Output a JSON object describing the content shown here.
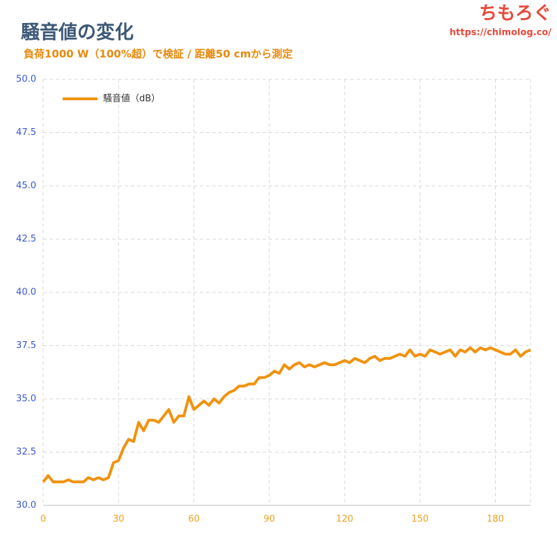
{
  "chart_data": {
    "type": "line",
    "title": "騒音値の変化",
    "subtitle": "負荷1000 W（100%超）で検証 / 距離50 cmから測定",
    "brand": "ちもろぐ",
    "brand_url": "https://chimolog.co/",
    "x": [
      0,
      2,
      4,
      6,
      8,
      10,
      12,
      14,
      16,
      18,
      20,
      22,
      24,
      26,
      28,
      30,
      32,
      34,
      36,
      38,
      40,
      42,
      44,
      46,
      48,
      50,
      52,
      54,
      56,
      58,
      60,
      62,
      64,
      66,
      68,
      70,
      72,
      74,
      76,
      78,
      80,
      82,
      84,
      86,
      88,
      90,
      92,
      94,
      96,
      98,
      100,
      102,
      104,
      106,
      108,
      110,
      112,
      114,
      116,
      118,
      120,
      122,
      124,
      126,
      128,
      130,
      132,
      134,
      136,
      138,
      140,
      142,
      144,
      146,
      148,
      150,
      152,
      154,
      156,
      158,
      160,
      162,
      164,
      166,
      168,
      170,
      172,
      174,
      176,
      178,
      180,
      182,
      184,
      186,
      188,
      190,
      192,
      194
    ],
    "series": [
      {
        "name": "騒音値（dB）",
        "color": "#f0920f",
        "values": [
          31.1,
          31.4,
          31.1,
          31.1,
          31.1,
          31.2,
          31.1,
          31.1,
          31.1,
          31.3,
          31.2,
          31.3,
          31.2,
          31.3,
          32.0,
          32.1,
          32.7,
          33.1,
          33.0,
          33.9,
          33.5,
          34.0,
          34.0,
          33.9,
          34.2,
          34.5,
          33.9,
          34.2,
          34.2,
          35.1,
          34.5,
          34.7,
          34.9,
          34.7,
          35.0,
          34.8,
          35.1,
          35.3,
          35.4,
          35.6,
          35.6,
          35.7,
          35.7,
          36.0,
          36.0,
          36.1,
          36.3,
          36.2,
          36.6,
          36.4,
          36.6,
          36.7,
          36.5,
          36.6,
          36.5,
          36.6,
          36.7,
          36.6,
          36.6,
          36.7,
          36.8,
          36.7,
          36.9,
          36.8,
          36.7,
          36.9,
          37.0,
          36.8,
          36.9,
          36.9,
          37.0,
          37.1,
          37.0,
          37.3,
          37.0,
          37.1,
          37.0,
          37.3,
          37.2,
          37.1,
          37.2,
          37.3,
          37.0,
          37.3,
          37.2,
          37.4,
          37.2,
          37.4,
          37.3,
          37.4,
          37.3,
          37.2,
          37.1,
          37.1,
          37.3,
          37.0,
          37.2,
          37.3
        ]
      }
    ],
    "xlim": [
      0,
      194
    ],
    "ylim": [
      30,
      50
    ],
    "xticks": [
      0,
      30,
      60,
      90,
      120,
      150,
      180
    ],
    "yticks": [
      {
        "value": 30,
        "label": "30.0"
      },
      32.5,
      {
        "value": 35,
        "label": "35.0"
      },
      37.5,
      {
        "value": 40,
        "label": "40.0"
      },
      42.5,
      {
        "value": 45,
        "label": "45.0"
      },
      47.5,
      {
        "value": 50,
        "label": "50.0"
      }
    ],
    "grid": true,
    "legend": "top-left"
  }
}
